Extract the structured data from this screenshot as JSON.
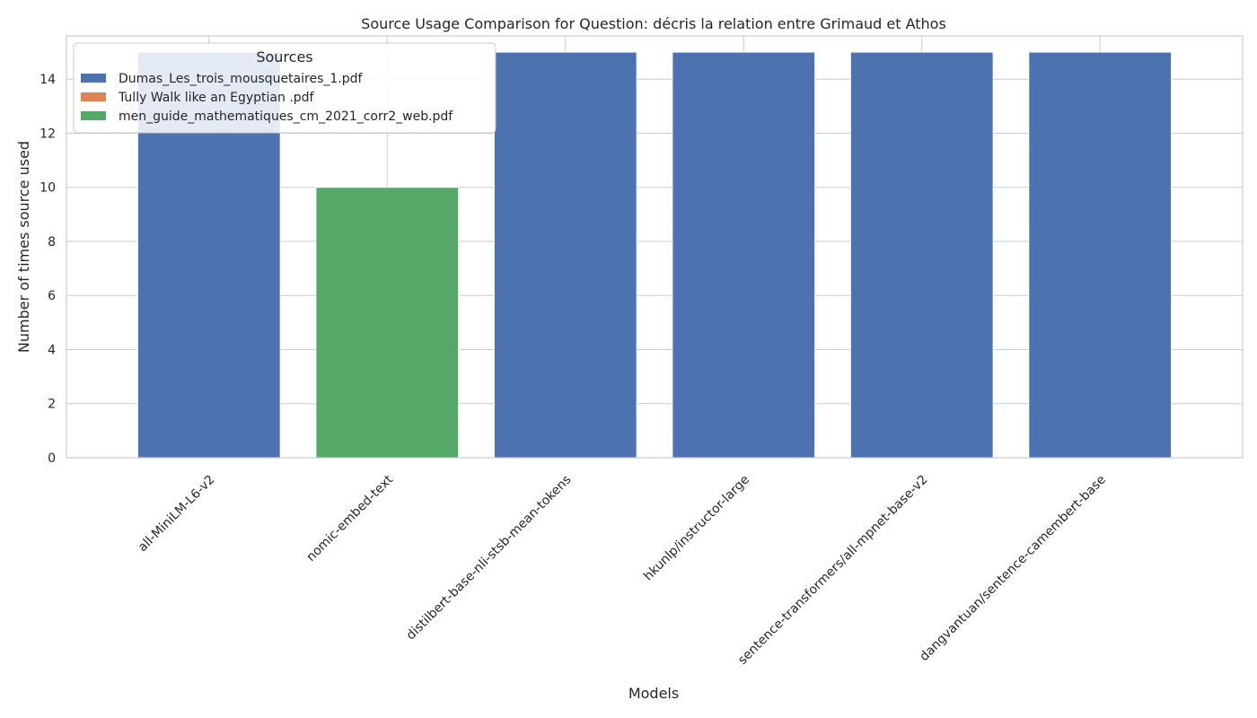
{
  "chart_data": {
    "type": "bar",
    "stacked": true,
    "title": "Source Usage Comparison for Question: décris la relation entre Grimaud et Athos",
    "xlabel": "Models",
    "ylabel": "Number of times source used",
    "ylim": [
      0,
      15.6
    ],
    "yticks": [
      0,
      2,
      4,
      6,
      8,
      10,
      12,
      14
    ],
    "grid": true,
    "legend": {
      "title": "Sources",
      "placement": "top-left"
    },
    "categories": [
      "all-MiniLM-L6-v2",
      "nomic-embed-text",
      "distilbert-base-nli-stsb-mean-tokens",
      "hkunlp/instructor-large",
      "sentence-transformers/all-mpnet-base-v2",
      "dangvantuan/sentence-camembert-base"
    ],
    "series": [
      {
        "name": "Dumas_Les_trois_mousquetaires_1.pdf",
        "color": "#4c72b0",
        "values": [
          15,
          0,
          15,
          15,
          15,
          15
        ]
      },
      {
        "name": "Tully Walk like an Egyptian .pdf",
        "color": "#dd8452",
        "values": [
          0,
          0,
          0,
          0,
          0,
          0
        ]
      },
      {
        "name": "men_guide_mathematiques_cm_2021_corr2_web.pdf",
        "color": "#55a868",
        "values": [
          0,
          10,
          0,
          0,
          0,
          0
        ]
      }
    ]
  }
}
